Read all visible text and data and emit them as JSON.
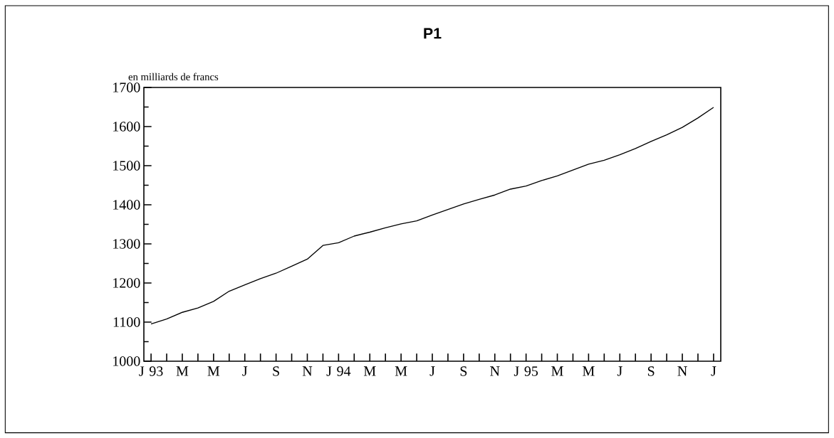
{
  "chart_data": {
    "type": "line",
    "title": "P1",
    "ylabel": "en milliards de francs",
    "categories": [
      "J 93",
      null,
      "M",
      null,
      "M",
      null,
      "J",
      null,
      "S",
      null,
      "N",
      null,
      "J 94",
      null,
      "M",
      null,
      "M",
      null,
      "J",
      null,
      "S",
      null,
      "N",
      null,
      "J 95",
      null,
      "M",
      null,
      "M",
      null,
      "J",
      null,
      "S",
      null,
      "N",
      null,
      "J"
    ],
    "series": [
      {
        "color": "#000000",
        "values": [
          1095,
          1108,
          1125,
          1136,
          1153,
          1179,
          1195,
          1211,
          1225,
          1243,
          1261,
          1296,
          1303,
          1320,
          1330,
          1341,
          1351,
          1359,
          1374,
          1388,
          1402,
          1414,
          1425,
          1440,
          1448,
          1462,
          1474,
          1489,
          1504,
          1514,
          1528,
          1544,
          1562,
          1579,
          1598,
          1622,
          1649
        ]
      }
    ],
    "ylim": [
      1000,
      1700
    ],
    "yticks": [
      1000,
      1100,
      1200,
      1300,
      1400,
      1500,
      1600,
      1700
    ]
  }
}
